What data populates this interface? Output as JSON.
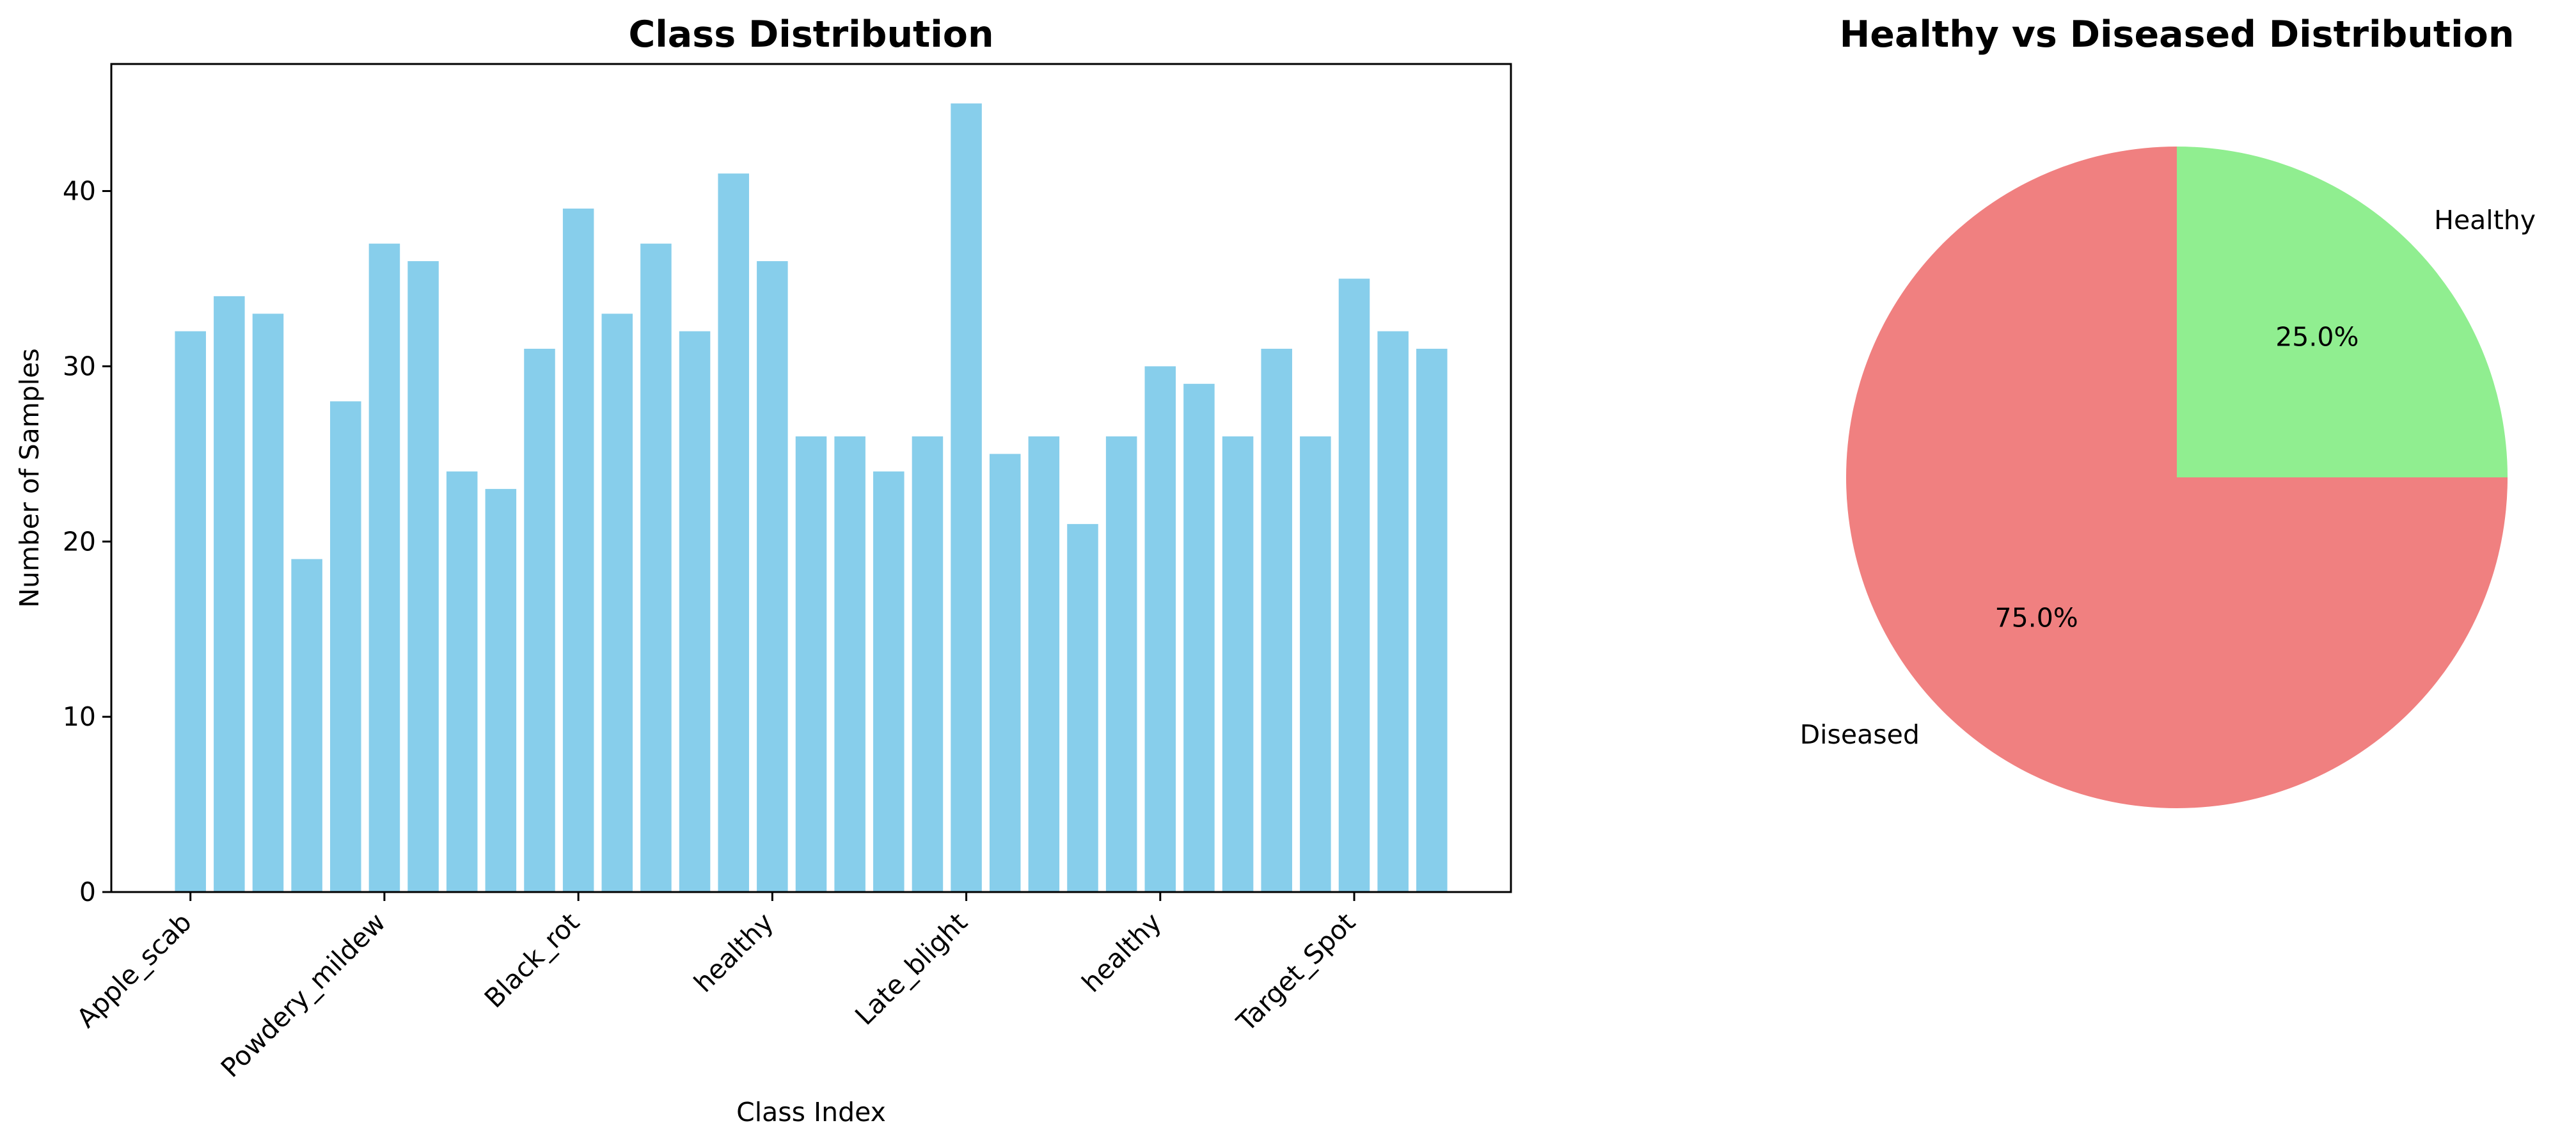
{
  "chart_data": [
    {
      "type": "bar",
      "title": "Class Distribution",
      "xlabel": "Class Index",
      "ylabel": "Number of Samples",
      "ylim": [
        0,
        47.25
      ],
      "yticks": [
        0,
        10,
        20,
        30,
        40
      ],
      "tick_labels": [
        {
          "index": 0,
          "label": "Apple_scab"
        },
        {
          "index": 5,
          "label": "Powdery_mildew"
        },
        {
          "index": 10,
          "label": "Black_rot"
        },
        {
          "index": 15,
          "label": "healthy"
        },
        {
          "index": 20,
          "label": "Late_blight"
        },
        {
          "index": 25,
          "label": "healthy"
        },
        {
          "index": 30,
          "label": "Target_Spot"
        }
      ],
      "values": [
        32,
        34,
        33,
        19,
        28,
        37,
        36,
        24,
        23,
        31,
        39,
        33,
        37,
        32,
        41,
        36,
        26,
        26,
        24,
        26,
        45,
        25,
        26,
        21,
        26,
        30,
        29,
        26,
        31,
        26,
        35,
        32,
        31
      ],
      "color": "#87ceeb",
      "grid": false
    },
    {
      "type": "pie",
      "title": "Healthy vs Diseased Distribution",
      "slices": [
        {
          "label": "Healthy",
          "value": 25.0,
          "pct_label": "25.0%",
          "color": "#90ee90"
        },
        {
          "label": "Diseased",
          "value": 75.0,
          "pct_label": "75.0%",
          "color": "#f08080"
        }
      ],
      "start_angle": 90,
      "direction": "clockwise"
    }
  ]
}
